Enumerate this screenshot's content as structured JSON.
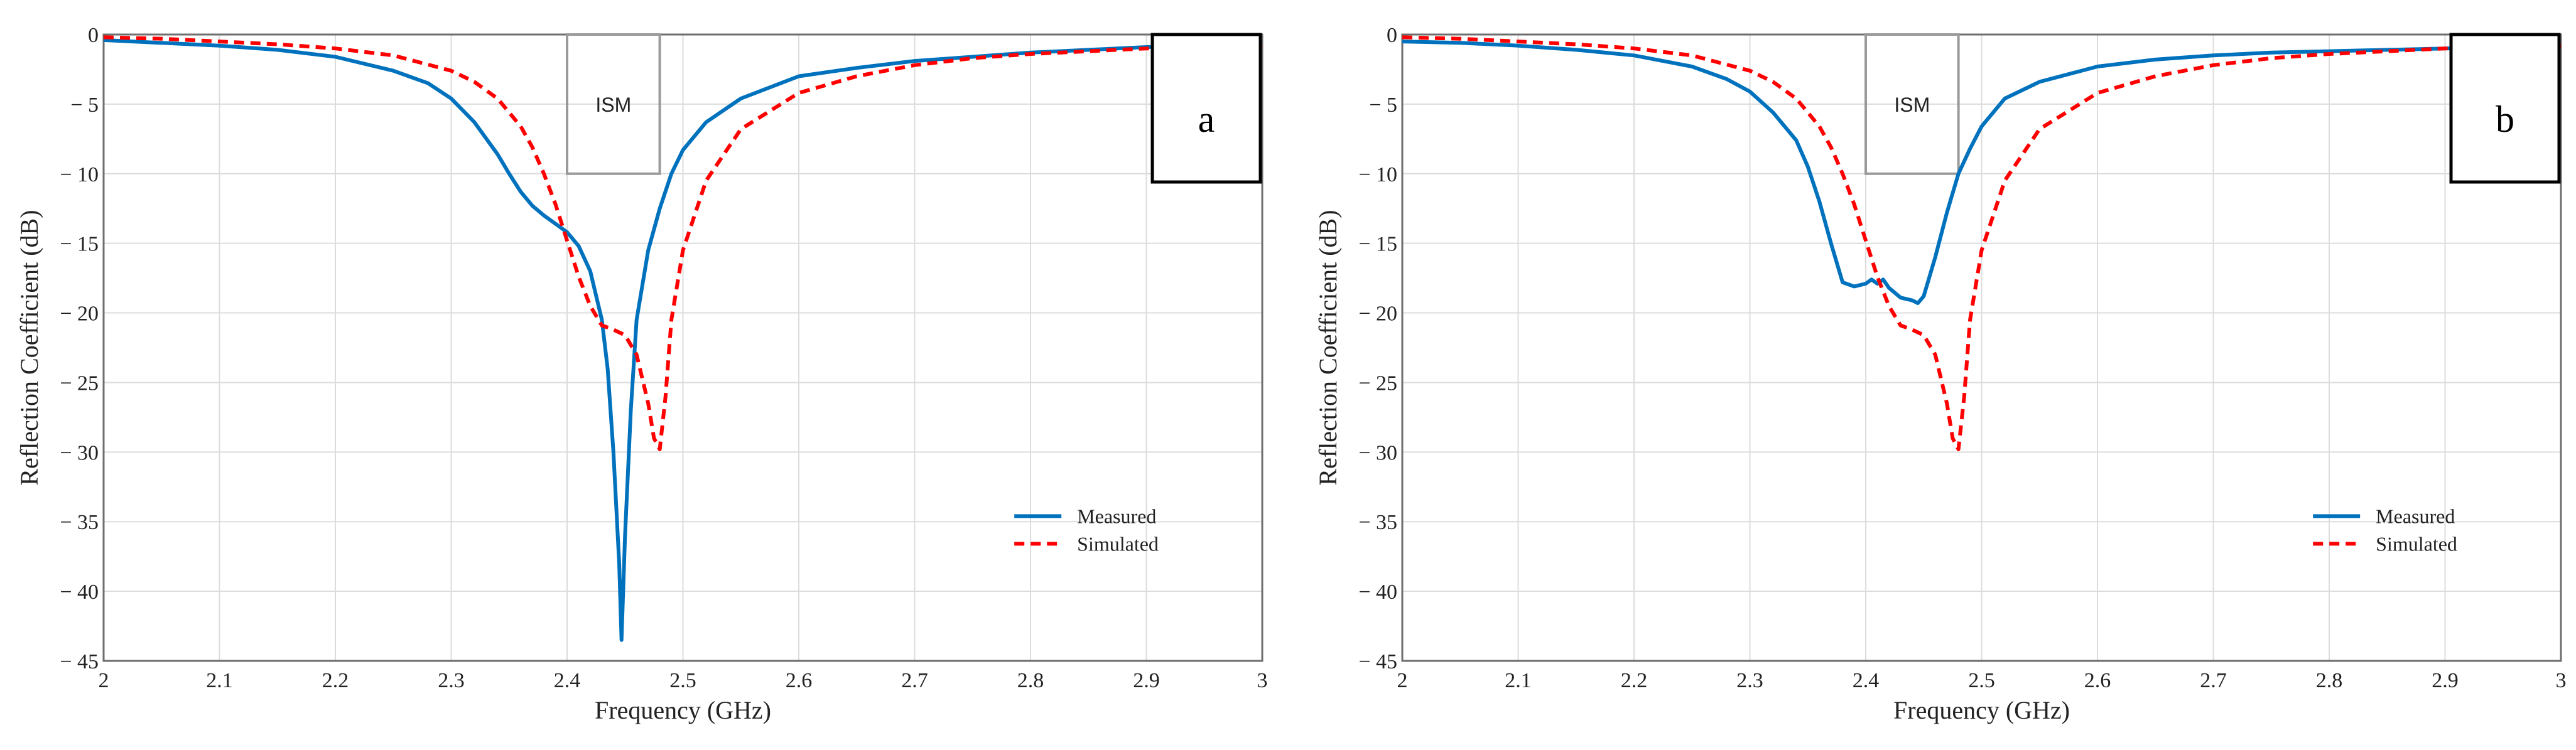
{
  "colors": {
    "measured": "#0072BD",
    "simulated": "#FF0000",
    "ism_box": "#9a9a9a"
  },
  "chart_data": [
    {
      "type": "line",
      "panel": "a",
      "xlabel": "Frequency (GHz)",
      "ylabel": "Reflection Coefficient (dB)",
      "xlim": [
        2,
        3
      ],
      "ylim": [
        -45,
        0
      ],
      "xticks": [
        2,
        2.1,
        2.2,
        2.3,
        2.4,
        2.5,
        2.6,
        2.7,
        2.8,
        2.9,
        3
      ],
      "yticks": [
        0,
        -5,
        -10,
        -15,
        -20,
        -25,
        -30,
        -35,
        -40,
        -45
      ],
      "grid": true,
      "legend": "bottom-right",
      "annotation": {
        "text": "ISM",
        "x_range": [
          2.4,
          2.48
        ],
        "y_range": [
          -10,
          0
        ]
      },
      "series": [
        {
          "name": "Measured",
          "style": "solid",
          "x": [
            2.0,
            2.05,
            2.1,
            2.15,
            2.2,
            2.25,
            2.28,
            2.3,
            2.32,
            2.34,
            2.35,
            2.36,
            2.37,
            2.38,
            2.39,
            2.4,
            2.41,
            2.42,
            2.43,
            2.435,
            2.44,
            2.445,
            2.447,
            2.45,
            2.455,
            2.46,
            2.47,
            2.48,
            2.49,
            2.5,
            2.52,
            2.55,
            2.6,
            2.65,
            2.7,
            2.75,
            2.8,
            2.85,
            2.9,
            2.95,
            3.0
          ],
          "values": [
            -0.4,
            -0.6,
            -0.8,
            -1.1,
            -1.6,
            -2.6,
            -3.5,
            -4.6,
            -6.3,
            -8.6,
            -10.0,
            -11.3,
            -12.3,
            -13.0,
            -13.6,
            -14.2,
            -15.2,
            -17.0,
            -20.5,
            -24.0,
            -30.0,
            -38.0,
            -43.5,
            -36.0,
            -27.0,
            -20.5,
            -15.5,
            -12.5,
            -10.0,
            -8.3,
            -6.3,
            -4.6,
            -3.0,
            -2.4,
            -1.9,
            -1.6,
            -1.3,
            -1.1,
            -0.9,
            -0.8,
            -0.7
          ]
        },
        {
          "name": "Simulated",
          "style": "dashed",
          "x": [
            2.0,
            2.05,
            2.1,
            2.15,
            2.2,
            2.25,
            2.3,
            2.32,
            2.34,
            2.36,
            2.37,
            2.38,
            2.39,
            2.4,
            2.41,
            2.42,
            2.43,
            2.44,
            2.45,
            2.46,
            2.47,
            2.475,
            2.48,
            2.485,
            2.49,
            2.5,
            2.52,
            2.55,
            2.6,
            2.65,
            2.7,
            2.75,
            2.8,
            2.85,
            2.9,
            2.95,
            3.0
          ],
          "values": [
            -0.2,
            -0.3,
            -0.5,
            -0.7,
            -1.0,
            -1.5,
            -2.6,
            -3.4,
            -4.6,
            -6.6,
            -8.1,
            -10.0,
            -12.2,
            -14.8,
            -17.4,
            -19.5,
            -20.9,
            -21.2,
            -21.6,
            -23.0,
            -26.5,
            -29.0,
            -29.8,
            -26.0,
            -20.5,
            -15.5,
            -10.5,
            -6.8,
            -4.2,
            -3.0,
            -2.2,
            -1.7,
            -1.4,
            -1.2,
            -1.0,
            -0.9,
            -0.8
          ]
        }
      ],
      "label": "a"
    },
    {
      "type": "line",
      "panel": "b",
      "xlabel": "Frequency (GHz)",
      "ylabel": "Reflection Coefficient (dB)",
      "xlim": [
        2,
        3
      ],
      "ylim": [
        -45,
        0
      ],
      "xticks": [
        2,
        2.1,
        2.2,
        2.3,
        2.4,
        2.5,
        2.6,
        2.7,
        2.8,
        2.9,
        3
      ],
      "yticks": [
        0,
        -5,
        -10,
        -15,
        -20,
        -25,
        -30,
        -35,
        -40,
        -45
      ],
      "grid": true,
      "legend": "bottom-right",
      "annotation": {
        "text": "ISM",
        "x_range": [
          2.4,
          2.48
        ],
        "y_range": [
          -10,
          0
        ]
      },
      "series": [
        {
          "name": "Measured",
          "style": "solid",
          "x": [
            2.0,
            2.05,
            2.1,
            2.15,
            2.2,
            2.25,
            2.28,
            2.3,
            2.32,
            2.34,
            2.35,
            2.36,
            2.37,
            2.38,
            2.39,
            2.4,
            2.405,
            2.41,
            2.415,
            2.42,
            2.43,
            2.44,
            2.445,
            2.45,
            2.46,
            2.47,
            2.48,
            2.49,
            2.5,
            2.52,
            2.55,
            2.6,
            2.65,
            2.7,
            2.75,
            2.8,
            2.85,
            2.9,
            2.95,
            3.0
          ],
          "values": [
            -0.5,
            -0.6,
            -0.8,
            -1.1,
            -1.5,
            -2.3,
            -3.2,
            -4.1,
            -5.6,
            -7.6,
            -9.5,
            -12.0,
            -15.0,
            -17.8,
            -18.1,
            -17.9,
            -17.6,
            -17.9,
            -17.6,
            -18.2,
            -18.9,
            -19.1,
            -19.3,
            -18.8,
            -16.0,
            -12.8,
            -10.0,
            -8.2,
            -6.6,
            -4.6,
            -3.4,
            -2.3,
            -1.8,
            -1.5,
            -1.3,
            -1.2,
            -1.1,
            -1.0,
            -0.9,
            -0.8
          ]
        },
        {
          "name": "Simulated",
          "style": "dashed",
          "x": [
            2.0,
            2.05,
            2.1,
            2.15,
            2.2,
            2.25,
            2.3,
            2.32,
            2.34,
            2.36,
            2.37,
            2.38,
            2.39,
            2.4,
            2.41,
            2.42,
            2.43,
            2.44,
            2.45,
            2.46,
            2.47,
            2.475,
            2.48,
            2.485,
            2.49,
            2.5,
            2.52,
            2.55,
            2.6,
            2.65,
            2.7,
            2.75,
            2.8,
            2.85,
            2.9,
            2.95,
            3.0
          ],
          "values": [
            -0.2,
            -0.3,
            -0.5,
            -0.7,
            -1.0,
            -1.5,
            -2.6,
            -3.4,
            -4.6,
            -6.6,
            -8.1,
            -10.0,
            -12.2,
            -14.8,
            -17.4,
            -19.5,
            -20.9,
            -21.2,
            -21.6,
            -23.0,
            -26.5,
            -29.0,
            -29.8,
            -26.0,
            -20.5,
            -15.5,
            -10.5,
            -6.8,
            -4.2,
            -3.0,
            -2.2,
            -1.7,
            -1.4,
            -1.2,
            -1.0,
            -0.9,
            -0.8
          ]
        }
      ],
      "label": "b"
    }
  ]
}
